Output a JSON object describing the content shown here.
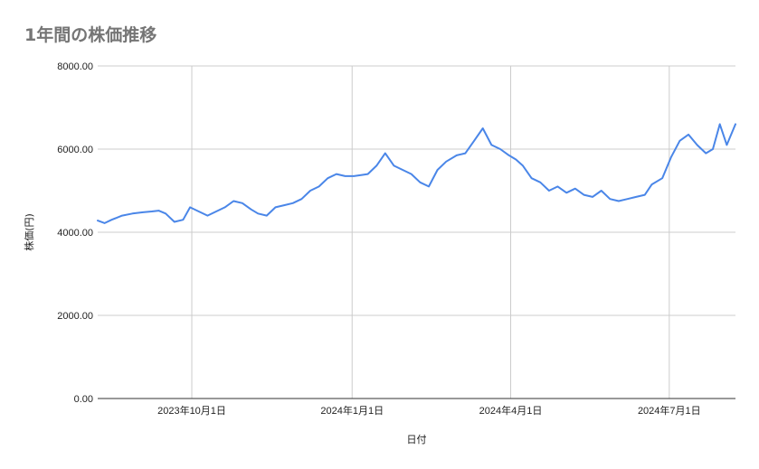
{
  "title": "1年間の株価推移",
  "chart_data": {
    "type": "line",
    "title": "1年間の株価推移",
    "xlabel": "日付",
    "ylabel": "株価(円)",
    "ylim": [
      0,
      8000
    ],
    "yticks": [
      "0.00",
      "2000.00",
      "4000.00",
      "6000.00",
      "8000.00"
    ],
    "xlim": [
      "2023-08-08",
      "2024-08-08"
    ],
    "xticks": [
      {
        "date": "2023-10-01",
        "label": "2023年10月1日"
      },
      {
        "date": "2024-01-01",
        "label": "2024年1月1日"
      },
      {
        "date": "2024-04-01",
        "label": "2024年4月1日"
      },
      {
        "date": "2024-07-01",
        "label": "2024年7月1日"
      }
    ],
    "grid": true,
    "line_color": "#4a86e8",
    "series": [
      {
        "x": [
          "2023-08-08",
          "2023-08-12",
          "2023-08-16",
          "2023-08-22",
          "2023-08-28",
          "2023-09-03",
          "2023-09-08",
          "2023-09-12",
          "2023-09-16",
          "2023-09-21",
          "2023-09-26",
          "2023-09-30",
          "2023-10-05",
          "2023-10-10",
          "2023-10-15",
          "2023-10-20",
          "2023-10-25",
          "2023-10-30",
          "2023-11-04",
          "2023-11-08",
          "2023-11-13",
          "2023-11-18",
          "2023-11-23",
          "2023-11-28",
          "2023-12-03",
          "2023-12-08",
          "2023-12-13",
          "2023-12-18",
          "2023-12-23",
          "2023-12-28",
          "2024-01-02",
          "2024-01-07",
          "2024-01-10",
          "2024-01-15",
          "2024-01-20",
          "2024-01-25",
          "2024-01-30",
          "2024-02-04",
          "2024-02-09",
          "2024-02-14",
          "2024-02-19",
          "2024-02-24",
          "2024-03-01",
          "2024-03-06",
          "2024-03-11",
          "2024-03-16",
          "2024-03-21",
          "2024-03-26",
          "2024-03-31",
          "2024-04-04",
          "2024-04-08",
          "2024-04-13",
          "2024-04-18",
          "2024-04-23",
          "2024-04-28",
          "2024-05-03",
          "2024-05-08",
          "2024-05-13",
          "2024-05-18",
          "2024-05-23",
          "2024-05-28",
          "2024-06-02",
          "2024-06-07",
          "2024-06-12",
          "2024-06-17",
          "2024-06-21",
          "2024-06-27",
          "2024-07-02",
          "2024-07-07",
          "2024-07-12",
          "2024-07-17",
          "2024-07-22",
          "2024-07-26",
          "2024-07-30",
          "2024-08-03",
          "2024-08-08"
        ],
        "values": [
          4280,
          4220,
          4300,
          4400,
          4450,
          4480,
          4500,
          4520,
          4450,
          4250,
          4300,
          4600,
          4500,
          4400,
          4500,
          4600,
          4750,
          4700,
          4550,
          4450,
          4400,
          4600,
          4650,
          4700,
          4800,
          5000,
          5100,
          5300,
          5400,
          5350,
          5350,
          5380,
          5400,
          5600,
          5900,
          5600,
          5500,
          5400,
          5200,
          5100,
          5500,
          5700,
          5850,
          5900,
          6200,
          6500,
          6100,
          6000,
          5850,
          5750,
          5600,
          5300,
          5200,
          5000,
          5100,
          4950,
          5050,
          4900,
          4850,
          5000,
          4800,
          4750,
          4800,
          4850,
          4900,
          5150,
          5300,
          5800,
          6200,
          6350,
          6100,
          5900,
          6000,
          6600,
          6100,
          6600
        ]
      }
    ]
  }
}
